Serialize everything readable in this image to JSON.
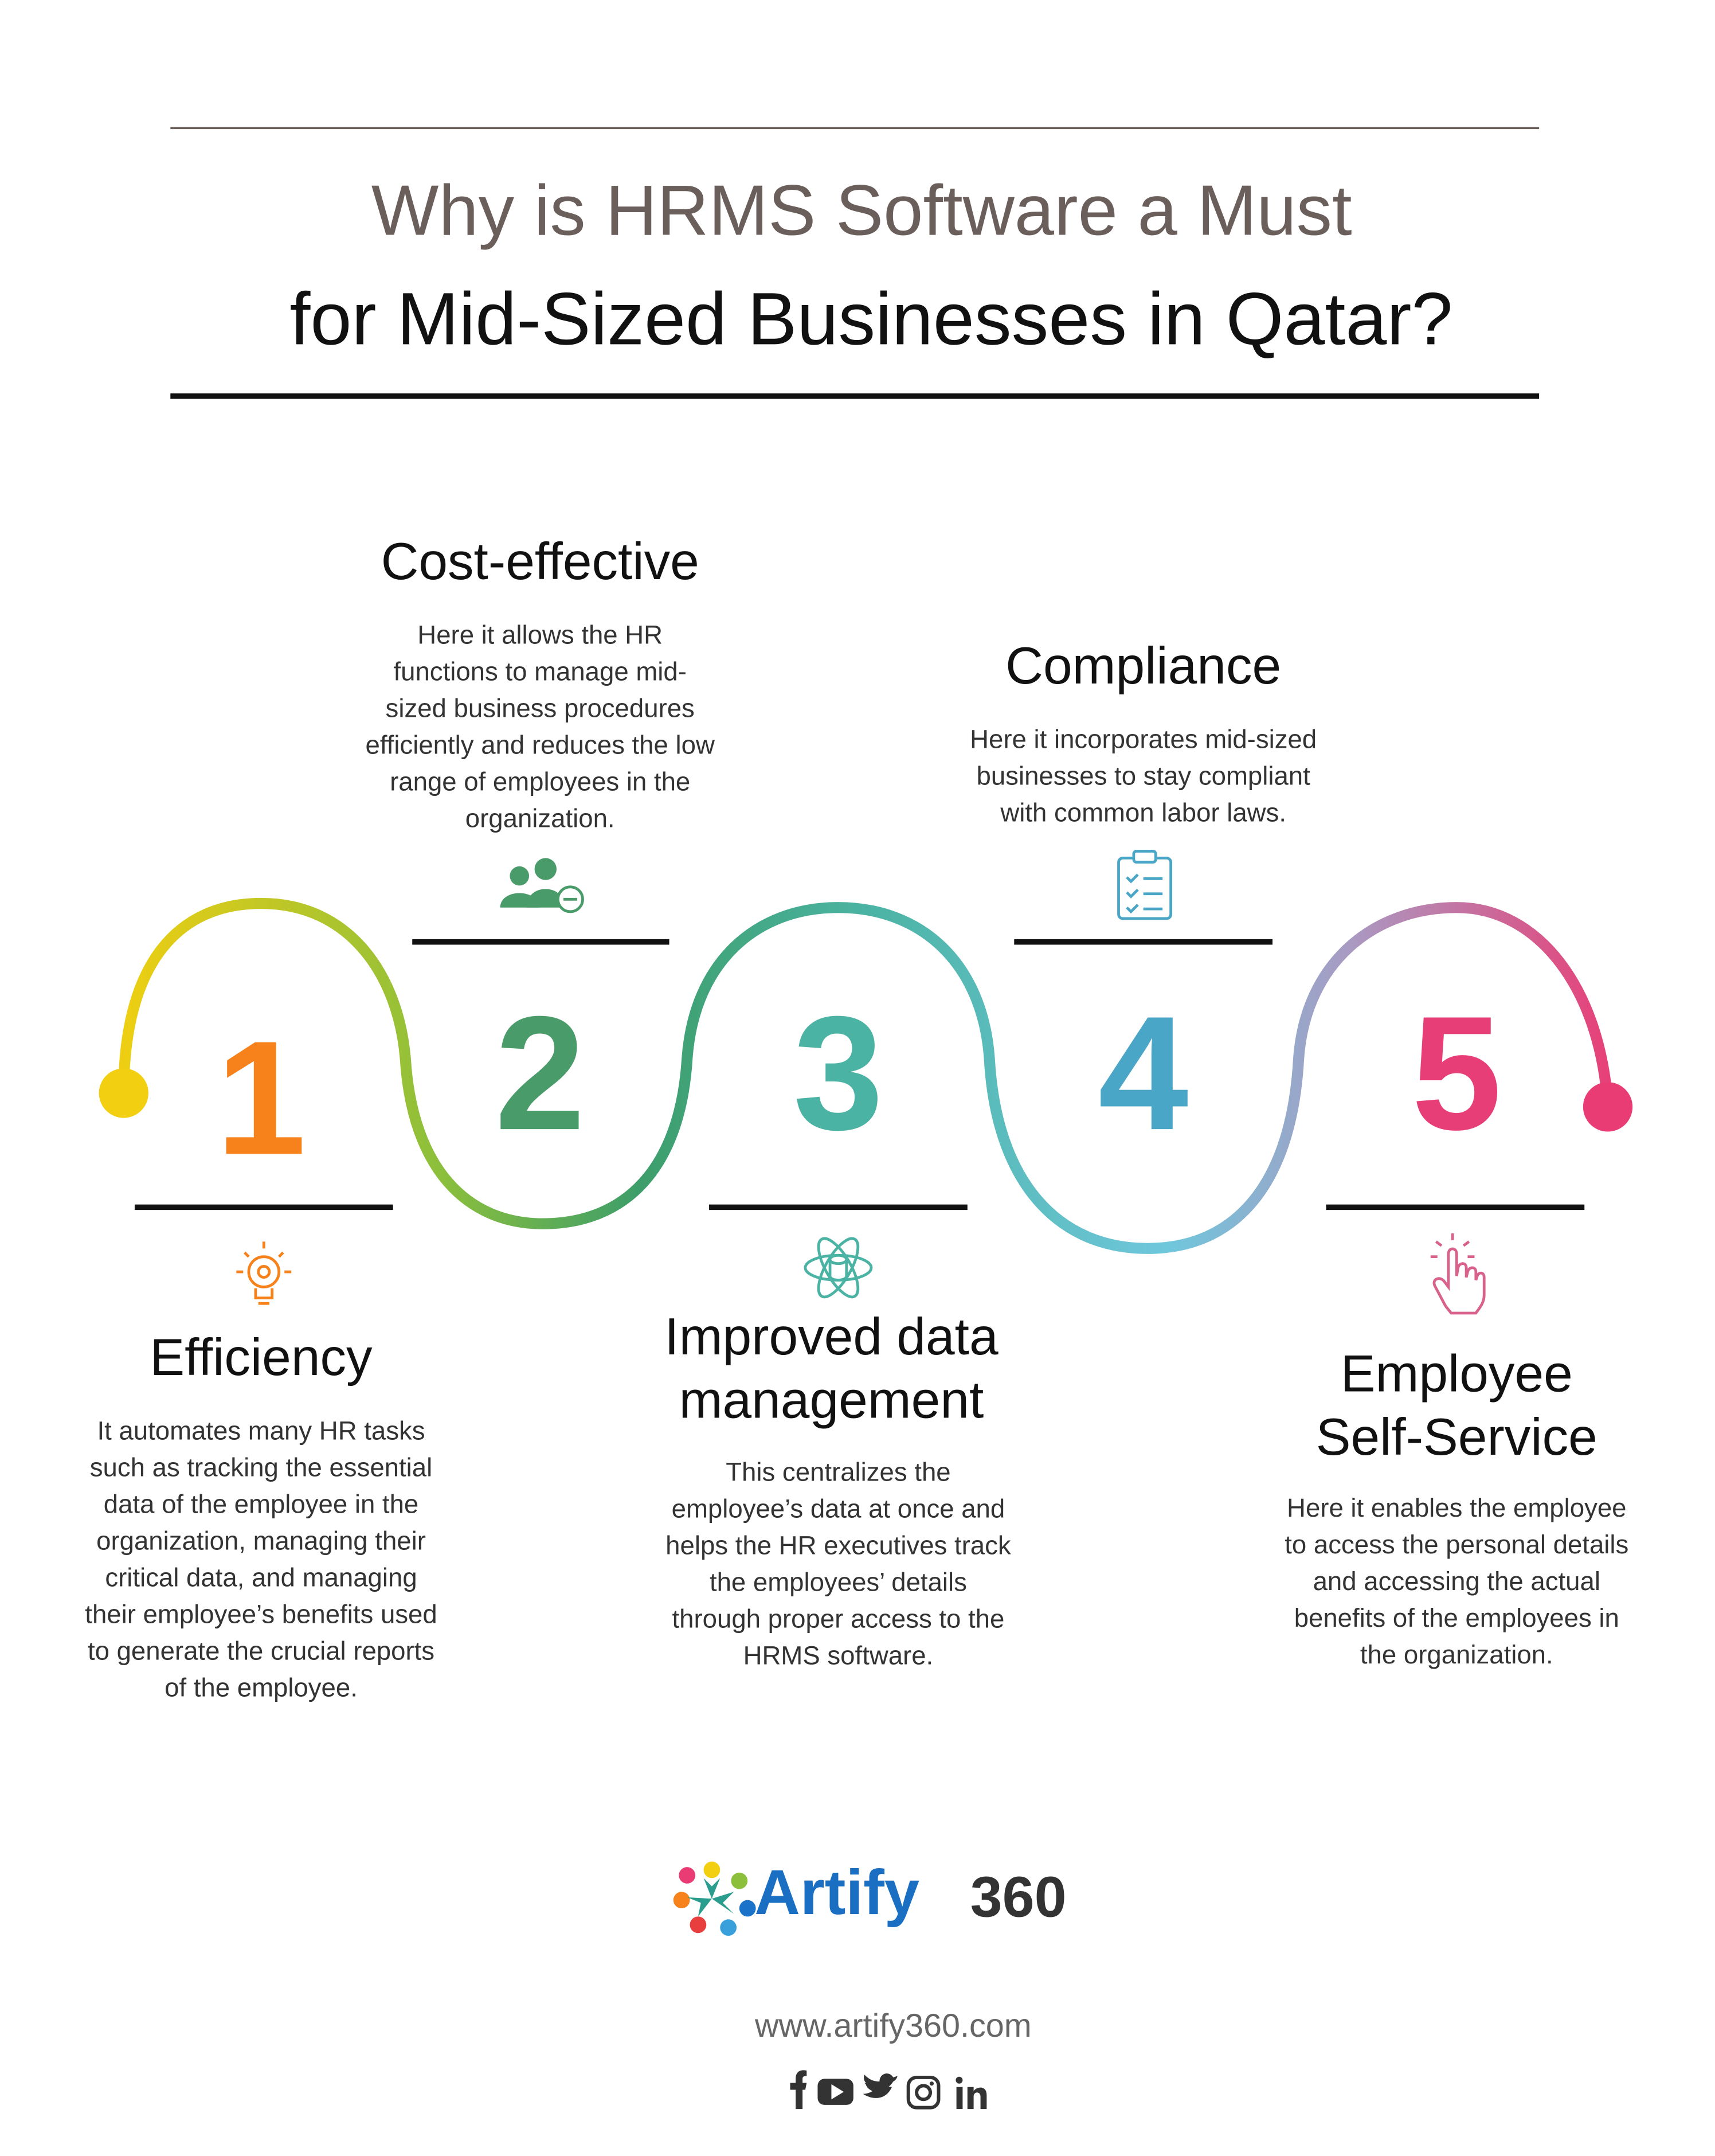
{
  "header": {
    "title_line1": "Why is HRMS Software a Must",
    "title_line2": "for Mid-Sized Businesses in Qatar?"
  },
  "steps": [
    {
      "number": "1",
      "title": [
        "Efficiency"
      ],
      "description": [
        "It automates many HR tasks",
        "such as tracking the essential",
        "data of the employee in the",
        "organization, managing their",
        "critical data, and managing",
        "their employee’s benefits used",
        "to generate the crucial reports",
        "of the employee."
      ]
    },
    {
      "number": "2",
      "title": [
        "Cost-effective"
      ],
      "description": [
        "Here it allows the HR",
        "functions to manage mid-",
        "sized business procedures",
        "efficiently and reduces the low",
        "range of employees in the",
        "organization."
      ]
    },
    {
      "number": "3",
      "title": [
        "Improved data",
        "management"
      ],
      "description": [
        "This centralizes the",
        "employee’s data at once and",
        "helps the HR executives track",
        "the employees’ details",
        "through proper access to the",
        "HRMS software."
      ]
    },
    {
      "number": "4",
      "title": [
        "Compliance"
      ],
      "description": [
        "Here it incorporates mid-sized",
        "businesses to stay compliant",
        "with common labor laws."
      ]
    },
    {
      "number": "5",
      "title": [
        "Employee",
        "Self-Service"
      ],
      "description": [
        "Here it enables the employee",
        "to access the personal details",
        "and accessing the actual",
        "benefits of the employees in",
        "the organization."
      ]
    }
  ],
  "footer": {
    "brand_name": "Artify",
    "brand_number": "360",
    "url": "www.artify360.com"
  }
}
